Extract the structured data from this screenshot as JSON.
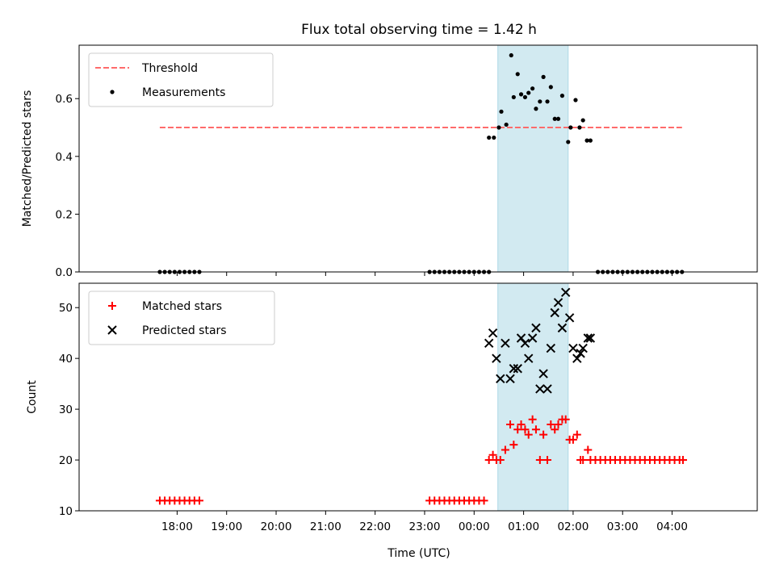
{
  "title": "Flux total observing time = 1.42 h",
  "colors": {
    "threshold": "#ff6b6b",
    "matched": "#ff0000",
    "predicted": "#000000",
    "measurement": "#000000",
    "shade": "#add8e6"
  },
  "chart_data": [
    {
      "type": "scatter",
      "panel": "top",
      "ylabel": "Matched/Predicted stars",
      "ylim": [
        0,
        0.785
      ],
      "yticks": [
        0.0,
        0.2,
        0.4,
        0.6
      ],
      "ytick_labels": [
        "0.0",
        "0.2",
        "0.4",
        "0.6"
      ],
      "xlim": [
        -1.98,
        11.72
      ],
      "shaded_interval": [
        6.48,
        7.9
      ],
      "legend": {
        "position": "upper-left",
        "entries": [
          "Threshold",
          "Measurements"
        ]
      },
      "threshold": {
        "name": "Threshold",
        "value": 0.5,
        "x_range": [
          -0.35,
          10.2
        ]
      },
      "series": [
        {
          "name": "Measurements",
          "x": [
            -0.35,
            -0.25,
            -0.15,
            -0.05,
            0.05,
            0.15,
            0.25,
            0.35,
            0.45,
            5.1,
            5.2,
            5.3,
            5.4,
            5.5,
            5.6,
            5.7,
            5.8,
            5.9,
            6.0,
            6.1,
            6.2,
            6.3,
            6.3,
            6.4,
            6.5,
            6.55,
            6.65,
            6.75,
            6.8,
            6.88,
            6.95,
            7.03,
            7.1,
            7.18,
            7.25,
            7.33,
            7.4,
            7.48,
            7.55,
            7.63,
            7.7,
            7.78,
            7.9,
            7.95,
            8.05,
            8.13,
            8.2,
            8.28,
            8.35,
            8.5,
            8.6,
            8.7,
            8.8,
            8.9,
            9.0,
            9.1,
            9.2,
            9.3,
            9.4,
            9.5,
            9.6,
            9.7,
            9.8,
            9.9,
            10.0,
            10.1,
            10.2
          ],
          "y": [
            0,
            0,
            0,
            0,
            0,
            0,
            0,
            0,
            0,
            0,
            0,
            0,
            0,
            0,
            0,
            0,
            0,
            0,
            0,
            0,
            0,
            0,
            0.465,
            0.465,
            0.5,
            0.555,
            0.51,
            0.75,
            0.605,
            0.685,
            0.615,
            0.605,
            0.62,
            0.635,
            0.565,
            0.59,
            0.675,
            0.59,
            0.64,
            0.53,
            0.53,
            0.61,
            0.45,
            0.5,
            0.595,
            0.5,
            0.525,
            0.455,
            0.455,
            0,
            0,
            0,
            0,
            0,
            0,
            0,
            0,
            0,
            0,
            0,
            0,
            0,
            0,
            0,
            0,
            0,
            0
          ]
        }
      ]
    },
    {
      "type": "scatter",
      "panel": "bottom",
      "ylabel": "Count",
      "xlabel": "Time (UTC)",
      "ylim": [
        10,
        54.8
      ],
      "yticks": [
        10,
        20,
        30,
        40,
        50
      ],
      "ytick_labels": [
        "10",
        "20",
        "30",
        "40",
        "50"
      ],
      "xlim": [
        -1.98,
        11.72
      ],
      "xticks": [
        0,
        1,
        2,
        3,
        4,
        5,
        6,
        7,
        8,
        9,
        10
      ],
      "xtick_labels": [
        "18:00",
        "19:00",
        "20:00",
        "21:00",
        "22:00",
        "23:00",
        "00:00",
        "01:00",
        "02:00",
        "03:00",
        "04:00"
      ],
      "shaded_interval": [
        6.48,
        7.9
      ],
      "legend": {
        "position": "upper-left",
        "entries": [
          "Matched stars",
          "Predicted stars"
        ]
      },
      "series": [
        {
          "name": "Matched stars",
          "x": [
            -0.35,
            -0.25,
            -0.15,
            -0.05,
            0.05,
            0.15,
            0.25,
            0.35,
            0.45,
            5.1,
            5.2,
            5.3,
            5.4,
            5.5,
            5.6,
            5.7,
            5.8,
            5.9,
            6.0,
            6.1,
            6.2,
            6.3,
            6.38,
            6.45,
            6.53,
            6.63,
            6.73,
            6.8,
            6.88,
            6.95,
            7.03,
            7.1,
            7.18,
            7.25,
            7.33,
            7.4,
            7.48,
            7.55,
            7.63,
            7.7,
            7.78,
            7.85,
            7.93,
            8.0,
            8.08,
            8.15,
            8.2,
            8.3,
            8.35,
            8.45,
            8.55,
            8.65,
            8.75,
            8.85,
            8.95,
            9.05,
            9.15,
            9.25,
            9.35,
            9.45,
            9.55,
            9.65,
            9.75,
            9.85,
            9.95,
            10.05,
            10.15,
            10.22
          ],
          "y": [
            12,
            12,
            12,
            12,
            12,
            12,
            12,
            12,
            12,
            12,
            12,
            12,
            12,
            12,
            12,
            12,
            12,
            12,
            12,
            12,
            12,
            20,
            21,
            20,
            20,
            22,
            27,
            23,
            26,
            27,
            26,
            25,
            28,
            26,
            20,
            25,
            20,
            27,
            26,
            27,
            28,
            28,
            24,
            24,
            25,
            20,
            20,
            22,
            20,
            20,
            20,
            20,
            20,
            20,
            20,
            20,
            20,
            20,
            20,
            20,
            20,
            20,
            20,
            20,
            20,
            20,
            20,
            20
          ]
        },
        {
          "name": "Predicted stars",
          "x": [
            6.3,
            6.38,
            6.45,
            6.53,
            6.63,
            6.73,
            6.8,
            6.88,
            6.95,
            7.03,
            7.1,
            7.18,
            7.25,
            7.33,
            7.4,
            7.48,
            7.55,
            7.63,
            7.7,
            7.78,
            7.85,
            7.93,
            8.0,
            8.08,
            8.15,
            8.2,
            8.3,
            8.35
          ],
          "y": [
            43,
            45,
            40,
            36,
            43,
            36,
            38,
            38,
            44,
            43,
            40,
            44,
            46,
            34,
            37,
            34,
            42,
            49,
            51,
            46,
            53,
            48,
            42,
            40,
            41,
            42,
            44,
            44
          ]
        }
      ]
    }
  ]
}
